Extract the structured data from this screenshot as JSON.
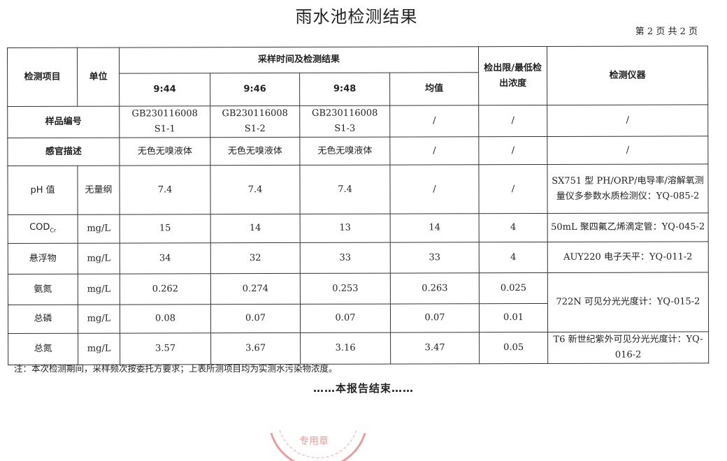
{
  "title": "雨水池检测结果",
  "page_info": "第 2 页 共 2 页",
  "headers": {
    "item": "检测项目",
    "unit": "单位",
    "sampling": "采样时间及检测结果",
    "times": [
      "9:44",
      "9:46",
      "9:48"
    ],
    "avg": "均值",
    "limit": "检出限/最低检出浓度",
    "instrument": "检测仪器"
  },
  "sample_id": {
    "label": "样品编号",
    "values": [
      "GB230116008\nS1-1",
      "GB230116008\nS1-2",
      "GB230116008\nS1-3"
    ],
    "avg": "/",
    "limit": "/",
    "instrument": "/"
  },
  "sensory": {
    "label": "感官描述",
    "values": [
      "无色无嗅液体",
      "无色无嗅液体",
      "无色无嗅液体"
    ],
    "avg": "/",
    "limit": "/",
    "instrument": "/"
  },
  "rows": [
    {
      "item": "pH 值",
      "unit": "无量纲",
      "values": [
        "7.4",
        "7.4",
        "7.4"
      ],
      "avg": "/",
      "limit": "/",
      "instrument": "SX751 型 PH/ORP/电导率/溶解氧测量仪多参数水质检测仪：YQ-085-2"
    },
    {
      "item": "COD",
      "item_sub": "Cr",
      "unit": "mg/L",
      "values": [
        "15",
        "14",
        "13"
      ],
      "avg": "14",
      "limit": "4",
      "instrument": "50mL 聚四氟乙烯滴定管：YQ-045-2"
    },
    {
      "item": "悬浮物",
      "unit": "mg/L",
      "values": [
        "34",
        "32",
        "33"
      ],
      "avg": "33",
      "limit": "4",
      "instrument": "AUY220  电子天平：YQ-011-2"
    },
    {
      "item": "氨氮",
      "unit": "mg/L",
      "values": [
        "0.262",
        "0.274",
        "0.253"
      ],
      "avg": "0.263",
      "limit": "0.025",
      "instrument": "722N 可见分光光度计：YQ-015-2"
    },
    {
      "item": "总磷",
      "unit": "mg/L",
      "values": [
        "0.08",
        "0.07",
        "0.07"
      ],
      "avg": "0.07",
      "limit": "0.01"
    },
    {
      "item": "总氮",
      "unit": "mg/L",
      "values": [
        "3.57",
        "3.67",
        "3.16"
      ],
      "avg": "3.47",
      "limit": "0.05",
      "instrument": "T6 新世纪紫外可见分光光度计：YQ-016-2"
    }
  ],
  "note": "注：本次检测期间，采样频次按委托方要求；上表所测项目均为实测水污染物浓度。",
  "end": "……本报告结束……",
  "stamp_color": "#e05a5a"
}
